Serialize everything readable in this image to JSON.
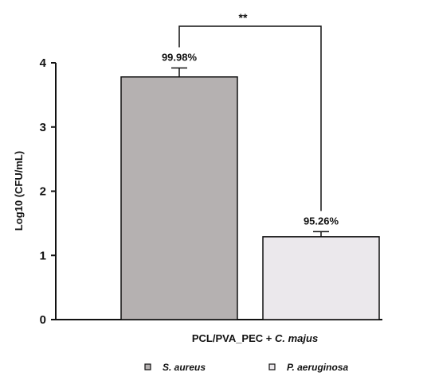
{
  "chart_data": {
    "type": "bar",
    "xlabel_parts": [
      "PCL/PVA_PEC + ",
      "C. majus"
    ],
    "ylabel": "Log10 (CFU/mL)",
    "ylim": [
      0,
      4
    ],
    "yticks": [
      "0",
      "1",
      "2",
      "3",
      "4"
    ],
    "grid": false,
    "legend_position": "bottom",
    "significance": "**",
    "series": [
      {
        "name": "S. aureus",
        "value": 3.78,
        "error": 0.14,
        "label": "99.98%",
        "color": "#b5b1b1"
      },
      {
        "name": "P. aeruginosa",
        "value": 1.29,
        "error": 0.08,
        "label": "95.26%",
        "color": "#ebe8ec"
      }
    ]
  }
}
